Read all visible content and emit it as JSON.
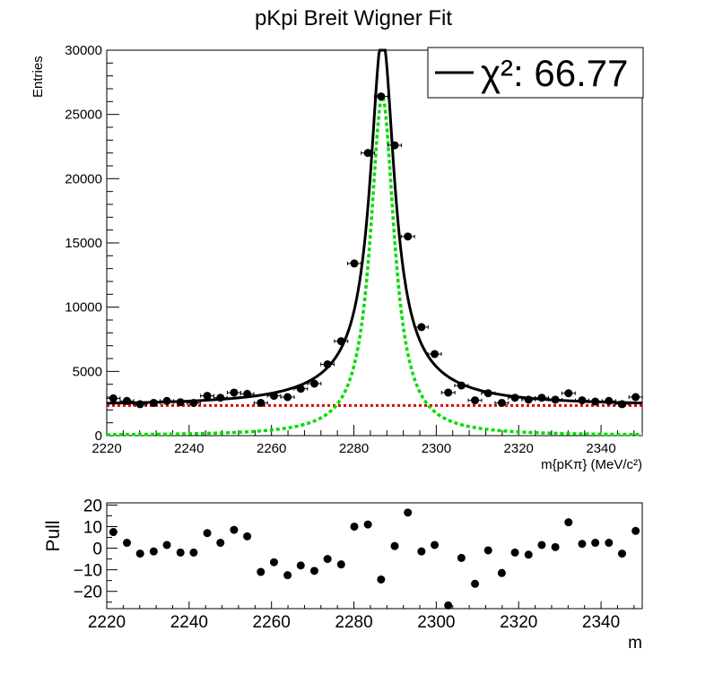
{
  "chart_data": [
    {
      "type": "scatter",
      "title": "pKpi Breit Wigner Fit",
      "ylabel": "Entries",
      "xlabel": "m{pKπ} (MeV/c²)",
      "xlim": [
        2220,
        2350
      ],
      "ylim": [
        0,
        30000
      ],
      "x_ticks": [
        2220,
        2240,
        2260,
        2280,
        2300,
        2320,
        2340
      ],
      "y_ticks": [
        0,
        5000,
        10000,
        15000,
        20000,
        25000,
        30000
      ],
      "legend": {
        "placement": "top-right",
        "chi2_label": "χ²: 66.77",
        "chi2_value": 66.77
      },
      "fit": {
        "mean": 2286.9,
        "gamma": 7.0,
        "peak": 26400,
        "background": 2350,
        "signal_color": "#00dd00",
        "background_color": "#dd0000",
        "total_color": "#000000"
      },
      "bin_width": 3.25,
      "series": [
        {
          "x": [
            2221.6,
            2224.9,
            2228.1,
            2231.4,
            2234.6,
            2237.9,
            2241.1,
            2244.4,
            2247.6,
            2250.9,
            2254.1,
            2257.4,
            2260.6,
            2263.9,
            2267.1,
            2270.4,
            2273.6,
            2276.9,
            2280.1,
            2283.4,
            2286.6,
            2289.9,
            2293.1,
            2296.4,
            2299.6,
            2302.9,
            2306.1,
            2309.4,
            2312.6,
            2315.9,
            2319.1,
            2322.4,
            2325.6,
            2328.9,
            2332.1,
            2335.4,
            2338.6,
            2341.9,
            2345.1,
            2348.4
          ],
          "y": [
            2900,
            2700,
            2450,
            2550,
            2700,
            2600,
            2550,
            3100,
            2950,
            3350,
            3250,
            2550,
            3100,
            3000,
            3650,
            4050,
            5550,
            7350,
            13400,
            22000,
            26400,
            22600,
            15500,
            8450,
            6350,
            3350,
            3900,
            2750,
            3300,
            2550,
            2950,
            2800,
            2950,
            2800,
            3300,
            2750,
            2650,
            2700,
            2450,
            3000
          ]
        }
      ]
    },
    {
      "type": "scatter",
      "ylabel": "Pull",
      "xlabel": "m",
      "xlim": [
        2220,
        2350
      ],
      "ylim": [
        -28,
        21
      ],
      "x_ticks": [
        2220,
        2240,
        2260,
        2280,
        2300,
        2320,
        2340
      ],
      "y_ticks": [
        20,
        10,
        0,
        -10,
        -20
      ],
      "y_tick_labels": [
        "20",
        "10",
        "0",
        "−10",
        "−20"
      ],
      "series": [
        {
          "x": [
            2221.6,
            2224.9,
            2228.1,
            2231.4,
            2234.6,
            2237.9,
            2241.1,
            2244.4,
            2247.6,
            2250.9,
            2254.1,
            2257.4,
            2260.6,
            2263.9,
            2267.1,
            2270.4,
            2273.6,
            2276.9,
            2280.1,
            2283.4,
            2286.6,
            2289.9,
            2293.1,
            2296.4,
            2299.6,
            2302.9,
            2306.1,
            2309.4,
            2312.6,
            2315.9,
            2319.1,
            2322.4,
            2325.6,
            2328.9,
            2332.1,
            2335.4,
            2338.6,
            2341.9,
            2345.1,
            2348.4
          ],
          "y": [
            7.5,
            2.5,
            -2.5,
            -1.5,
            1.5,
            -2,
            -2,
            7,
            2.5,
            8.5,
            5.5,
            -11,
            -6.5,
            -12.5,
            -8,
            -10.5,
            -5,
            -7.5,
            10,
            11,
            -14.5,
            1,
            16.5,
            -1.5,
            1.5,
            -26.5,
            -4.5,
            -16.5,
            -1,
            -11.5,
            -2,
            -3,
            1.5,
            0.5,
            12,
            2,
            2.5,
            2.5,
            -2.5,
            8
          ]
        }
      ]
    }
  ]
}
